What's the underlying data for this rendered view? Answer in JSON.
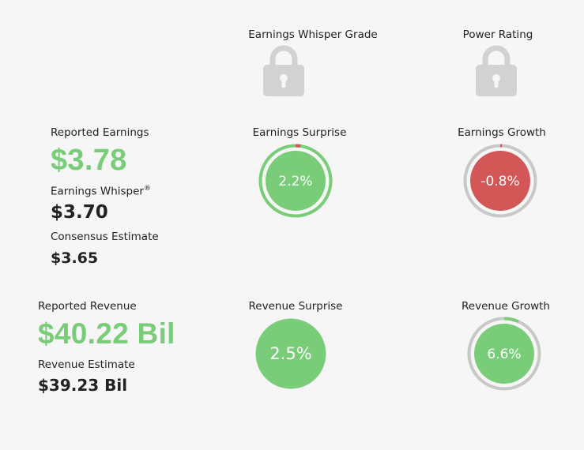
{
  "grade": {
    "label": "Earnings Whisper Grade",
    "lock_icon": "lock-icon"
  },
  "power_rating": {
    "label": "Power Rating",
    "lock_icon": "lock-icon"
  },
  "earnings": {
    "reported_label": "Reported Earnings",
    "reported_value": "$3.78",
    "whisper_label": "Earnings Whisper",
    "whisper_mark": "®",
    "whisper_value": "$3.70",
    "consensus_label": "Consensus Estimate",
    "consensus_value": "$3.65"
  },
  "earnings_surprise": {
    "label": "Earnings Surprise",
    "value_text": "2.2%",
    "value": 2.2,
    "fill_color": "#79cd79",
    "ring_color": "#79cd79",
    "arc_color": "#d35757"
  },
  "earnings_growth": {
    "label": "Earnings Growth",
    "value_text": "-0.8%",
    "value": -0.8,
    "fill_color": "#d35757",
    "ring_color": "#c8c8c8",
    "arc_color": "#d35757"
  },
  "revenue": {
    "reported_label": "Reported Revenue",
    "reported_value": "$40.22 Bil",
    "estimate_label": "Revenue Estimate",
    "estimate_value": "$39.23 Bil"
  },
  "revenue_surprise": {
    "label": "Revenue Surprise",
    "value_text": "2.5%",
    "value": 2.5,
    "fill_color": "#79cd79"
  },
  "revenue_growth": {
    "label": "Revenue Growth",
    "value_text": "6.6%",
    "value": 6.6,
    "fill_color": "#79cd79",
    "ring_color": "#c8c8c8",
    "arc_color": "#79cd79"
  }
}
